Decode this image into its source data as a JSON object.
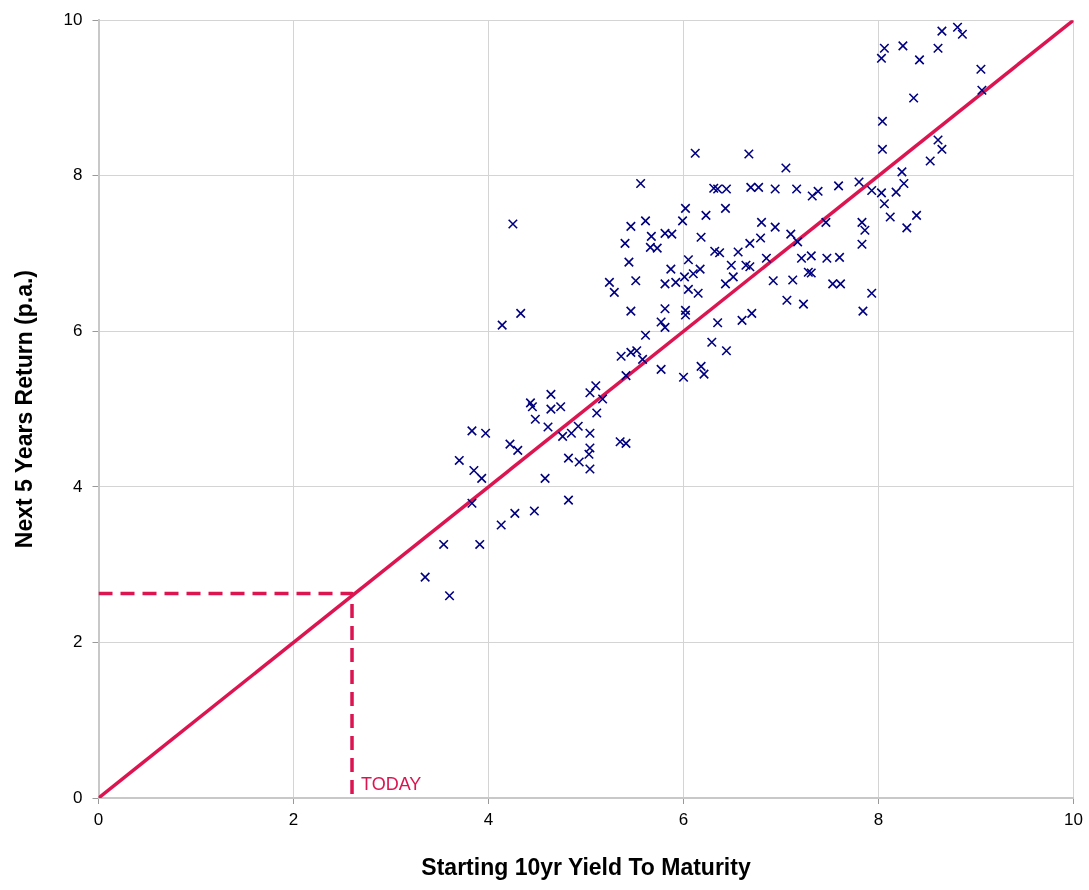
{
  "chart_data": {
    "type": "scatter",
    "xlabel": "Starting 10yr Yield To Maturity",
    "ylabel": "Next 5 Years Return (p.a.)",
    "xlim": [
      0,
      10
    ],
    "xticks": [
      0,
      2,
      4,
      6,
      8,
      10
    ],
    "ylim": [
      0,
      10
    ],
    "yticks": [
      0,
      2,
      4,
      6,
      8,
      10
    ],
    "grid": true,
    "legend": false,
    "annotations": [
      {
        "text": "TODAY",
        "x": 2.6,
        "y": 0
      }
    ],
    "series": [
      {
        "type": "scatter",
        "color": "#000080",
        "marker": "cross",
        "x": [
          5.4,
          5.24,
          5.29,
          5.44,
          5.51,
          5.46,
          5.61,
          5.56,
          5.67,
          5.81,
          5.88,
          5.73,
          5.66,
          6.02,
          5.99,
          6.23,
          6.43,
          6.12,
          6.67,
          7.05,
          6.31,
          6.35,
          6.44,
          6.69,
          6.77,
          6.94,
          7.16,
          7.38,
          7.32,
          7.59,
          7.8,
          7.93,
          6.8,
          6.94,
          7.1,
          6.18,
          6.68,
          6.79,
          7.17,
          7.83,
          7.86,
          7.83,
          6.32,
          6.37,
          6.56,
          6.85,
          7.21,
          7.31,
          7.47,
          7.6,
          6.49,
          6.64,
          6.68,
          6.05,
          6.17,
          5.87,
          5.81,
          5.92,
          6.01,
          6.1,
          6.05,
          6.15,
          6.43,
          6.51,
          6.92,
          7.12,
          7.28,
          7.31,
          7.53,
          7.61,
          7.93,
          7.06,
          7.23,
          7.84,
          5.46,
          5.81,
          6.02,
          6.02,
          5.77,
          5.81,
          5.61,
          6.35,
          6.6,
          6.7,
          6.29,
          6.44,
          5.36,
          5.46,
          5.52,
          5.58,
          5.77,
          6.18,
          6.21,
          6.0,
          8.65,
          8.81,
          8.86,
          8.06,
          8.03,
          8.25,
          8.42,
          8.61,
          9.05,
          9.06,
          8.36,
          8.04,
          8.04,
          8.61,
          8.65,
          8.53,
          8.24,
          8.26,
          8.18,
          8.03,
          8.06,
          8.12,
          8.39,
          8.29,
          7.46,
          4.14,
          4.33,
          5.41,
          5.1,
          5.04,
          5.17,
          5.11,
          4.64,
          4.43,
          4.45,
          4.64,
          4.74,
          4.48,
          4.61,
          4.76,
          4.85,
          4.92,
          5.04,
          5.04,
          5.03,
          5.04,
          4.93,
          4.82,
          5.35,
          5.41,
          4.22,
          4.3,
          3.83,
          3.97,
          3.7,
          3.85,
          3.93,
          4.58,
          3.83,
          4.82,
          4.13,
          4.27,
          4.47,
          3.54,
          3.91,
          3.35,
          3.6,
          4.25
        ],
        "values": [
          7.13,
          6.63,
          6.5,
          6.89,
          6.65,
          7.35,
          7.42,
          7.9,
          7.22,
          7.26,
          7.25,
          7.07,
          7.08,
          7.58,
          7.42,
          7.49,
          7.58,
          8.29,
          8.28,
          8.1,
          7.84,
          7.83,
          7.83,
          7.85,
          7.85,
          7.83,
          7.83,
          7.8,
          7.74,
          7.87,
          7.92,
          7.81,
          7.4,
          7.34,
          7.25,
          7.21,
          7.13,
          7.2,
          7.15,
          7.4,
          7.3,
          7.12,
          7.03,
          7.01,
          7.02,
          6.94,
          6.94,
          6.97,
          6.94,
          6.95,
          6.85,
          6.85,
          6.83,
          6.92,
          6.8,
          6.8,
          6.61,
          6.63,
          6.7,
          6.74,
          6.54,
          6.49,
          6.61,
          6.7,
          6.65,
          6.66,
          6.76,
          6.75,
          6.61,
          6.61,
          6.49,
          6.4,
          6.35,
          6.26,
          6.26,
          6.29,
          6.27,
          6.21,
          6.12,
          6.05,
          5.95,
          6.11,
          6.14,
          6.23,
          5.86,
          5.75,
          5.68,
          5.73,
          5.75,
          5.64,
          5.51,
          5.55,
          5.45,
          5.41,
          9.86,
          9.91,
          9.82,
          9.64,
          9.51,
          9.67,
          9.49,
          9.64,
          9.37,
          9.1,
          9.0,
          8.7,
          8.34,
          8.46,
          8.34,
          8.19,
          8.05,
          7.9,
          7.79,
          7.78,
          7.64,
          7.47,
          7.49,
          7.33,
          7.4,
          6.08,
          6.23,
          5.43,
          5.3,
          5.21,
          5.13,
          4.95,
          5.19,
          5.08,
          5.03,
          5.0,
          5.03,
          4.87,
          4.77,
          4.65,
          4.69,
          4.78,
          4.69,
          4.5,
          4.42,
          4.23,
          4.32,
          4.37,
          4.58,
          4.56,
          4.55,
          4.47,
          4.72,
          4.69,
          4.34,
          4.21,
          4.11,
          4.11,
          3.79,
          3.83,
          3.51,
          3.66,
          3.69,
          3.26,
          3.26,
          2.84,
          2.6,
          7.38
        ]
      },
      {
        "type": "line",
        "color": "#dc1450",
        "x": [
          0,
          10
        ],
        "values": [
          0,
          10
        ]
      },
      {
        "type": "line",
        "color": "#dc1450",
        "line_style": "dashed",
        "x": [
          0,
          2.6,
          2.6
        ],
        "values": [
          2.63,
          2.63,
          0
        ]
      }
    ]
  }
}
